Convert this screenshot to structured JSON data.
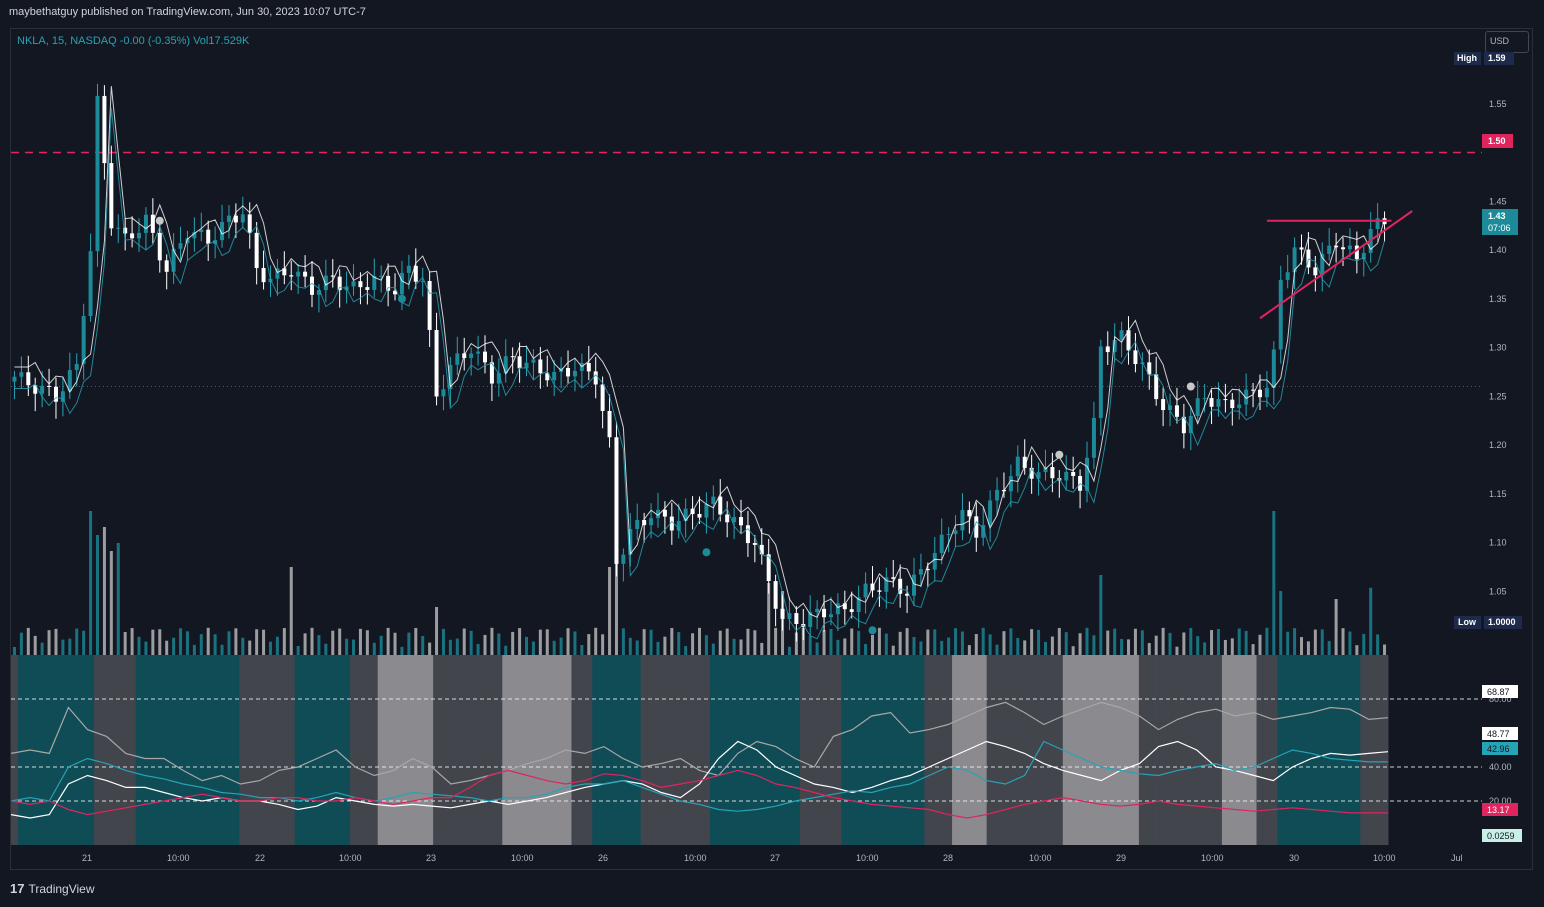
{
  "header": {
    "caption": "maybethatguy published on TradingView.com, Jun 30, 2023 10:07 UTC-7"
  },
  "symbol": {
    "info": "NKLA, 15, NASDAQ  -0.00 (-0.35%)  Vol17.529K",
    "currency": "USD"
  },
  "footer": {
    "logo_mark": "17",
    "brand": "TradingView"
  },
  "colors": {
    "background": "#131722",
    "up_candle": "#1c8a99",
    "up_candle_bright": "#26a3b5",
    "down_candle": "#ffffff",
    "resistance_line": "#e0245e",
    "rsi_line": "#a8a8a8",
    "white_line": "#ffffff",
    "teal_line": "#26a3b5",
    "pink_line": "#e0245e",
    "osc_teal_zone": "#0f4c56",
    "osc_gray_zone": "#8a8a8f",
    "osc_dark_zone": "#43454d"
  },
  "chart_data": [
    {
      "type": "candlestick",
      "symbol": "NKLA",
      "interval": "15",
      "exchange": "NASDAQ",
      "y_ticks": [
        1.05,
        1.1,
        1.15,
        1.2,
        1.25,
        1.3,
        1.35,
        1.4,
        1.45,
        1.55
      ],
      "ylim": [
        1.0,
        1.6
      ],
      "x_ticks": [
        "21",
        "10:00",
        "22",
        "10:00",
        "23",
        "10:00",
        "26",
        "10:00",
        "27",
        "10:00",
        "28",
        "10:00",
        "29",
        "10:00",
        "30",
        "10:00",
        "Jul"
      ],
      "price_labels": {
        "high_label": "High",
        "high_value": "1.59",
        "low_label": "Low",
        "low_value": "1.0000",
        "resistance_value": "1.50",
        "last_price": "1.43",
        "countdown": "07:06"
      },
      "resistance_level": 1.5,
      "prev_close_level": 1.26,
      "close_path": [
        [
          0,
          1.27
        ],
        [
          3,
          1.26
        ],
        [
          6,
          1.25
        ],
        [
          9,
          1.28
        ],
        [
          11,
          1.4
        ],
        [
          12,
          1.55
        ],
        [
          14,
          1.43
        ],
        [
          16,
          1.41
        ],
        [
          19,
          1.43
        ],
        [
          22,
          1.38
        ],
        [
          25,
          1.42
        ],
        [
          28,
          1.41
        ],
        [
          31,
          1.43
        ],
        [
          33,
          1.44
        ],
        [
          35,
          1.38
        ],
        [
          37,
          1.37
        ],
        [
          40,
          1.38
        ],
        [
          43,
          1.36
        ],
        [
          46,
          1.37
        ],
        [
          49,
          1.36
        ],
        [
          52,
          1.37
        ],
        [
          55,
          1.36
        ],
        [
          57,
          1.38
        ],
        [
          59,
          1.37
        ],
        [
          61,
          1.25
        ],
        [
          63,
          1.28
        ],
        [
          66,
          1.3
        ],
        [
          69,
          1.27
        ],
        [
          72,
          1.29
        ],
        [
          75,
          1.28
        ],
        [
          78,
          1.27
        ],
        [
          81,
          1.28
        ],
        [
          84,
          1.27
        ],
        [
          86,
          1.2
        ],
        [
          87,
          1.08
        ],
        [
          89,
          1.11
        ],
        [
          92,
          1.13
        ],
        [
          95,
          1.12
        ],
        [
          98,
          1.13
        ],
        [
          101,
          1.14
        ],
        [
          104,
          1.12
        ],
        [
          107,
          1.1
        ],
        [
          109,
          1.06
        ],
        [
          111,
          1.02
        ],
        [
          114,
          1.02
        ],
        [
          117,
          1.03
        ],
        [
          120,
          1.03
        ],
        [
          123,
          1.05
        ],
        [
          126,
          1.06
        ],
        [
          129,
          1.05
        ],
        [
          131,
          1.07
        ],
        [
          134,
          1.1
        ],
        [
          137,
          1.13
        ],
        [
          139,
          1.11
        ],
        [
          142,
          1.15
        ],
        [
          145,
          1.18
        ],
        [
          148,
          1.17
        ],
        [
          151,
          1.17
        ],
        [
          154,
          1.16
        ],
        [
          156,
          1.22
        ],
        [
          157,
          1.3
        ],
        [
          160,
          1.31
        ],
        [
          163,
          1.28
        ],
        [
          166,
          1.24
        ],
        [
          169,
          1.22
        ],
        [
          172,
          1.25
        ],
        [
          175,
          1.24
        ],
        [
          178,
          1.25
        ],
        [
          181,
          1.26
        ],
        [
          182,
          1.29
        ],
        [
          183,
          1.37
        ],
        [
          185,
          1.4
        ],
        [
          188,
          1.38
        ],
        [
          191,
          1.41
        ],
        [
          194,
          1.39
        ],
        [
          196,
          1.42
        ],
        [
          198,
          1.43
        ]
      ],
      "volume_spikes": [
        [
          11,
          0.9
        ],
        [
          12,
          0.75
        ],
        [
          13,
          0.8
        ],
        [
          14,
          0.65
        ],
        [
          15,
          0.7
        ],
        [
          40,
          0.55
        ],
        [
          61,
          0.3
        ],
        [
          86,
          0.55
        ],
        [
          87,
          0.75
        ],
        [
          109,
          0.45
        ],
        [
          111,
          0.4
        ],
        [
          157,
          0.5
        ],
        [
          182,
          0.9
        ],
        [
          183,
          0.4
        ],
        [
          191,
          0.35
        ],
        [
          196,
          0.42
        ]
      ]
    },
    {
      "type": "line",
      "panel": "oscillator",
      "y_ticks": [
        20,
        40,
        60,
        80
      ],
      "y_tick_labels": [
        "20.00",
        "40.00",
        "60.00",
        "80.00"
      ],
      "ylim": [
        0,
        100
      ],
      "value_labels": [
        "68.87",
        "48.77",
        "42.96",
        "13.17",
        "0.0259"
      ],
      "series": [
        {
          "color": "#a8a8a8",
          "last": 68.87,
          "values": [
            48,
            50,
            48,
            75,
            62,
            58,
            48,
            45,
            45,
            38,
            32,
            35,
            30,
            32,
            38,
            40,
            45,
            50,
            40,
            35,
            38,
            45,
            40,
            30,
            32,
            35,
            38,
            42,
            45,
            50,
            48,
            52,
            45,
            40,
            42,
            45,
            38,
            35,
            48,
            55,
            52,
            45,
            40,
            58,
            62,
            70,
            72,
            60,
            62,
            65,
            70,
            75,
            78,
            72,
            65,
            70,
            74,
            78,
            75,
            70,
            62,
            68,
            72,
            74,
            70,
            72,
            68,
            70,
            72,
            75,
            74,
            68,
            69
          ]
        },
        {
          "color": "#ffffff",
          "last": 48.77,
          "values": [
            12,
            10,
            12,
            30,
            35,
            32,
            28,
            28,
            25,
            22,
            20,
            22,
            20,
            20,
            18,
            15,
            17,
            22,
            20,
            18,
            17,
            18,
            17,
            16,
            18,
            20,
            18,
            20,
            22,
            25,
            28,
            30,
            32,
            30,
            25,
            22,
            30,
            45,
            55,
            50,
            40,
            35,
            30,
            28,
            25,
            28,
            32,
            35,
            40,
            45,
            50,
            55,
            52,
            48,
            42,
            38,
            35,
            32,
            38,
            42,
            52,
            55,
            50,
            40,
            38,
            35,
            32,
            40,
            45,
            48,
            47,
            48,
            49
          ]
        },
        {
          "color": "#26a3b5",
          "last": 42.96,
          "values": [
            20,
            22,
            20,
            40,
            45,
            42,
            38,
            35,
            33,
            30,
            28,
            25,
            24,
            22,
            22,
            20,
            22,
            25,
            22,
            20,
            22,
            25,
            24,
            23,
            22,
            20,
            22,
            22,
            24,
            28,
            30,
            30,
            32,
            28,
            24,
            20,
            18,
            15,
            14,
            15,
            17,
            20,
            22,
            24,
            26,
            25,
            28,
            30,
            35,
            40,
            38,
            32,
            30,
            35,
            55,
            50,
            45,
            40,
            38,
            36,
            35,
            38,
            40,
            42,
            38,
            40,
            45,
            50,
            48,
            45,
            44,
            43,
            43
          ]
        },
        {
          "color": "#e0245e",
          "last": 13.17,
          "values": [
            20,
            18,
            20,
            15,
            12,
            14,
            16,
            18,
            20,
            22,
            24,
            22,
            20,
            20,
            22,
            22,
            20,
            20,
            22,
            20,
            18,
            20,
            22,
            22,
            28,
            35,
            38,
            35,
            32,
            30,
            32,
            36,
            35,
            32,
            28,
            30,
            32,
            35,
            38,
            35,
            30,
            28,
            25,
            22,
            20,
            18,
            17,
            16,
            15,
            12,
            10,
            12,
            15,
            18,
            20,
            22,
            20,
            18,
            17,
            18,
            20,
            18,
            17,
            16,
            15,
            14,
            15,
            16,
            15,
            14,
            13,
            13,
            13
          ]
        }
      ]
    }
  ]
}
